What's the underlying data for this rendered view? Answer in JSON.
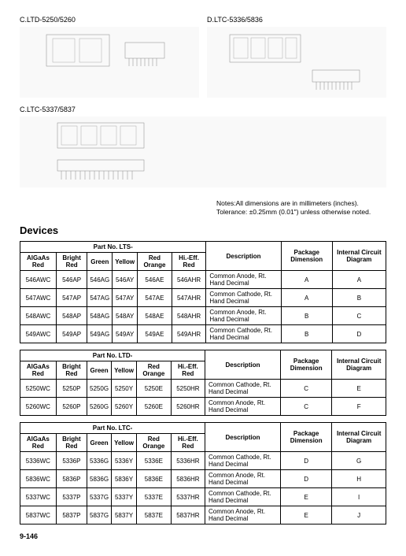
{
  "diagrams": {
    "a": {
      "title": "C.LTD-5250/5260"
    },
    "b": {
      "title": "D.LTC-5336/5836"
    },
    "c": {
      "title": "C.LTC-5337/5837"
    }
  },
  "notes": {
    "line1": "Notes:All dimensions are in millimeters (inches).",
    "line2": "Tolerance: ±0.25mm (0.01\") unless otherwise noted."
  },
  "devices_heading": "Devices",
  "table1": {
    "partno_label": "Part No. LTS-",
    "head": {
      "c1": "AlGaAs Red",
      "c2": "Bright Red",
      "c3": "Green",
      "c4": "Yellow",
      "c5": "Red Orange",
      "c6": "Hi.-Eff. Red",
      "c7": "Description",
      "c8": "Package Dimension",
      "c9": "Internal Circuit Diagram"
    },
    "rows": [
      {
        "c1": "546AWC",
        "c2": "546AP",
        "c3": "546AG",
        "c4": "546AY",
        "c5": "546AE",
        "c6": "546AHR",
        "c7": "Common Anode, Rt. Hand Decimal",
        "c8": "A",
        "c9": "A"
      },
      {
        "c1": "547AWC",
        "c2": "547AP",
        "c3": "547AG",
        "c4": "547AY",
        "c5": "547AE",
        "c6": "547AHR",
        "c7": "Common Cathode, Rt. Hand Decimal",
        "c8": "A",
        "c9": "B"
      },
      {
        "c1": "548AWC",
        "c2": "548AP",
        "c3": "548AG",
        "c4": "548AY",
        "c5": "548AE",
        "c6": "548AHR",
        "c7": "Common Anode, Rt. Hand Decimal",
        "c8": "B",
        "c9": "C"
      },
      {
        "c1": "549AWC",
        "c2": "549AP",
        "c3": "549AG",
        "c4": "549AY",
        "c5": "549AE",
        "c6": "549AHR",
        "c7": "Common Cathode, Rt. Hand Decimal",
        "c8": "B",
        "c9": "D"
      }
    ]
  },
  "table2": {
    "partno_label": "Part No. LTD-",
    "head": {
      "c1": "AlGaAs Red",
      "c2": "Bright Red",
      "c3": "Green",
      "c4": "Yellow",
      "c5": "Red Orange",
      "c6": "Hi.-Eff. Red",
      "c7": "Description",
      "c8": "Package Dimension",
      "c9": "Internal Circuit Diagram"
    },
    "rows": [
      {
        "c1": "5250WC",
        "c2": "5250P",
        "c3": "5250G",
        "c4": "5250Y",
        "c5": "5250E",
        "c6": "5250HR",
        "c7": "Common Cathode, Rt. Hand Decimal",
        "c8": "C",
        "c9": "E"
      },
      {
        "c1": "5260WC",
        "c2": "5260P",
        "c3": "5260G",
        "c4": "5260Y",
        "c5": "5260E",
        "c6": "5260HR",
        "c7": "Common Anode, Rt. Hand Decimal",
        "c8": "C",
        "c9": "F"
      }
    ]
  },
  "table3": {
    "partno_label": "Part No. LTC-",
    "head": {
      "c1": "AlGaAs Red",
      "c2": "Bright Red",
      "c3": "Green",
      "c4": "Yellow",
      "c5": "Red Orange",
      "c6": "Hi.-Eff. Red",
      "c7": "Description",
      "c8": "Package Dimension",
      "c9": "Internal Circuit Diagram"
    },
    "rows": [
      {
        "c1": "5336WC",
        "c2": "5336P",
        "c3": "5336G",
        "c4": "5336Y",
        "c5": "5336E",
        "c6": "5336HR",
        "c7": "Common Cathode, Rt. Hand Decimal",
        "c8": "D",
        "c9": "G"
      },
      {
        "c1": "5836WC",
        "c2": "5836P",
        "c3": "5836G",
        "c4": "5836Y",
        "c5": "5836E",
        "c6": "5836HR",
        "c7": "Common Anode, Rt. Hand Decimal",
        "c8": "D",
        "c9": "H"
      },
      {
        "c1": "5337WC",
        "c2": "5337P",
        "c3": "5337G",
        "c4": "5337Y",
        "c5": "5337E",
        "c6": "5337HR",
        "c7": "Common Cathode, Rt. Hand Decimal",
        "c8": "E",
        "c9": "I"
      },
      {
        "c1": "5837WC",
        "c2": "5837P",
        "c3": "5837G",
        "c4": "5837Y",
        "c5": "5837E",
        "c6": "5837HR",
        "c7": "Common Anode, Rt. Hand Decimal",
        "c8": "E",
        "c9": "J"
      }
    ]
  },
  "page_num": "9-146"
}
